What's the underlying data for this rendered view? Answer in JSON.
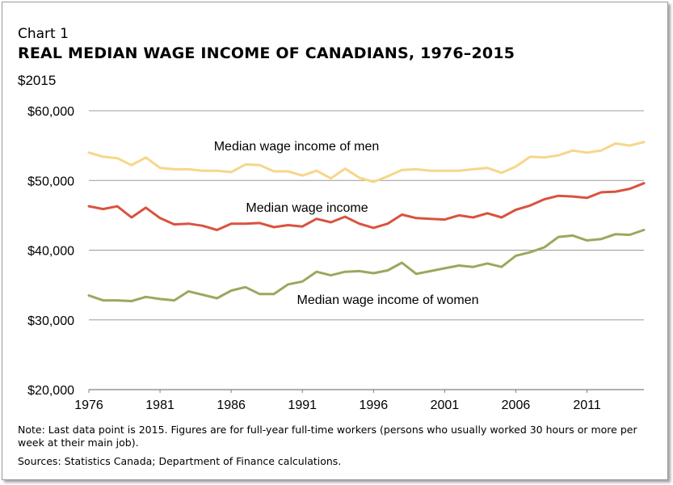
{
  "chart_label": "Chart 1",
  "title": "REAL MEDIAN WAGE INCOME OF CANADIANS, 1976–2015",
  "unit_label": "$2015",
  "note": "Note: Last data point is 2015. Figures are for full-year full-time workers (persons who usually worked 30 hours or more per week at their main job).",
  "sources": "Sources: Statistics Canada; Department of Finance calculations.",
  "chart_data": {
    "type": "line",
    "title": "REAL MEDIAN WAGE INCOME OF CANADIANS, 1976–2015",
    "ylabel": "$2015",
    "xlabel": "",
    "ylim": [
      20000,
      60000
    ],
    "xlim": [
      1976,
      2015
    ],
    "grid": true,
    "y_ticks": [
      20000,
      30000,
      40000,
      50000,
      60000
    ],
    "y_tick_labels": [
      "$20,000",
      "$30,000",
      "$40,000",
      "$50,000",
      "$60,000"
    ],
    "x_ticks": [
      1976,
      1981,
      1986,
      1991,
      1996,
      2001,
      2006,
      2011
    ],
    "x": [
      1976,
      1977,
      1978,
      1979,
      1980,
      1981,
      1982,
      1983,
      1984,
      1985,
      1986,
      1987,
      1988,
      1989,
      1990,
      1991,
      1992,
      1993,
      1994,
      1995,
      1996,
      1997,
      1998,
      1999,
      2000,
      2001,
      2002,
      2003,
      2004,
      2005,
      2006,
      2007,
      2008,
      2009,
      2010,
      2011,
      2012,
      2013,
      2014,
      2015
    ],
    "series": [
      {
        "name": "Median wage income of men",
        "color": "#f7d68a",
        "values": [
          54000,
          53400,
          53200,
          52200,
          53300,
          51800,
          51600,
          51600,
          51400,
          51400,
          51200,
          52300,
          52200,
          51300,
          51300,
          50700,
          51400,
          50300,
          51700,
          50400,
          49800,
          50600,
          51500,
          51600,
          51400,
          51400,
          51400,
          51600,
          51800,
          51100,
          52000,
          53400,
          53300,
          53600,
          54300,
          54000,
          54300,
          55300,
          55000,
          55500
        ]
      },
      {
        "name": "Median wage income",
        "color": "#d9533f",
        "values": [
          46300,
          45900,
          46300,
          44700,
          46100,
          44600,
          43700,
          43800,
          43500,
          42900,
          43800,
          43800,
          43900,
          43300,
          43600,
          43400,
          44500,
          44000,
          44800,
          43800,
          43200,
          43800,
          45100,
          44600,
          44500,
          44400,
          45000,
          44700,
          45300,
          44700,
          45800,
          46400,
          47300,
          47800,
          47700,
          47500,
          48300,
          48400,
          48800,
          49600
        ]
      },
      {
        "name": "Median wage income of women",
        "color": "#9ba85e",
        "values": [
          33500,
          32800,
          32800,
          32700,
          33300,
          33000,
          32800,
          34100,
          33600,
          33100,
          34200,
          34700,
          33700,
          33700,
          35100,
          35500,
          36900,
          36400,
          36900,
          37000,
          36700,
          37100,
          38200,
          36600,
          37000,
          37400,
          37800,
          37600,
          38100,
          37600,
          39200,
          39700,
          40400,
          41900,
          42100,
          41400,
          41600,
          42300,
          42200,
          42900
        ]
      }
    ],
    "annotations": [
      "Median wage income of men",
      "Median wage income",
      "Median wage income of women"
    ]
  }
}
